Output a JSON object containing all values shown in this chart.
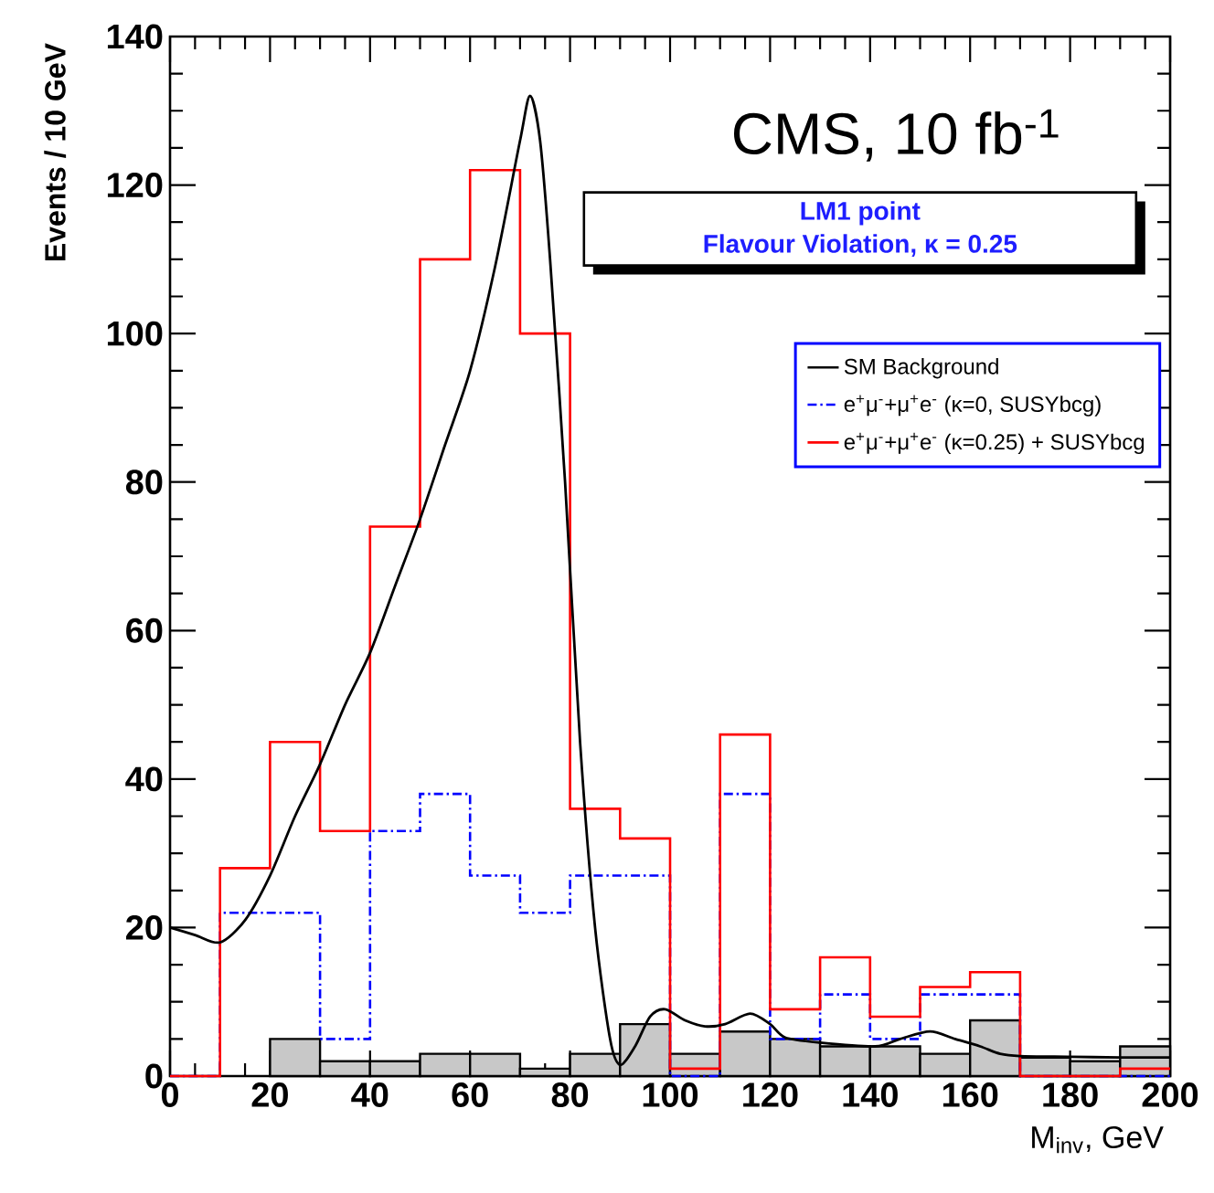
{
  "chart_data": {
    "type": "histogram",
    "xlabel": "M$_{inv}$, GeV",
    "ylabel": "Events / 10 GeV",
    "annotations": [
      "CMS, 10 fb$^{-1}$",
      "LM1 point",
      "Flavour Violation,  κ = 0.25"
    ],
    "bins": [
      0,
      10,
      20,
      30,
      40,
      50,
      60,
      70,
      80,
      90,
      100,
      110,
      120,
      130,
      140,
      150,
      160,
      170,
      180,
      190,
      200
    ],
    "series": [
      {
        "color": "#c8c8c8",
        "values": [
          0,
          0,
          5,
          2,
          2,
          3,
          3,
          1,
          3,
          7,
          3,
          6,
          5,
          4,
          4,
          3,
          7.5,
          2.5,
          2,
          4
        ]
      },
      {
        "name": "e$^{+}$μ$^{-}$+μ$^{+}$e$^{-}$ (κ=0, SUSYbcg)",
        "color": "#0000ff",
        "line_style": "dashed",
        "values": [
          0,
          22,
          22,
          5,
          33,
          38,
          27,
          22,
          27,
          27,
          0,
          38,
          5,
          11,
          5,
          11,
          11,
          0,
          0,
          0
        ]
      },
      {
        "name": "e$^{+}$μ$^{-}$+μ$^{+}$e$^{-}$ (κ=0.25) + SUSYbcg",
        "color": "#ff0000",
        "line_style": "solid",
        "values": [
          0,
          28,
          45,
          33,
          74,
          110,
          122,
          100,
          36,
          32,
          1,
          46,
          9,
          16,
          8,
          12,
          14,
          0,
          0,
          1
        ]
      },
      {
        "type": "line",
        "name": "SM Background",
        "color": "#000000",
        "line_style": "solid",
        "x": [
          0,
          5,
          10,
          15,
          20,
          25,
          30,
          35,
          40,
          45,
          50,
          55,
          60,
          65,
          70,
          72,
          74,
          76,
          79,
          82,
          85,
          88,
          90,
          93,
          96,
          99,
          103,
          107,
          111,
          116,
          120,
          123,
          130,
          141,
          146,
          152,
          157,
          162,
          166,
          170,
          180,
          190,
          196,
          200
        ],
        "values": [
          20,
          19,
          18,
          21,
          27,
          35,
          42,
          50,
          57,
          66,
          75,
          85,
          95,
          109,
          126,
          132,
          126,
          110,
          80,
          45,
          20,
          5,
          1.5,
          4,
          8,
          9,
          7.5,
          6.7,
          7,
          8.4,
          7,
          5.2,
          4.5,
          4,
          5,
          6,
          5,
          4,
          3,
          2.7,
          2.6,
          2.5,
          2.5,
          2.5
        ]
      }
    ],
    "xlim": [
      0,
      200
    ],
    "ylim": [
      0,
      140
    ],
    "xticks": [
      0,
      20,
      40,
      60,
      80,
      100,
      120,
      140,
      160,
      180,
      200
    ],
    "yticks": [
      0,
      20,
      40,
      60,
      80,
      100,
      120,
      140
    ],
    "legend": "top right",
    "grid": false
  }
}
